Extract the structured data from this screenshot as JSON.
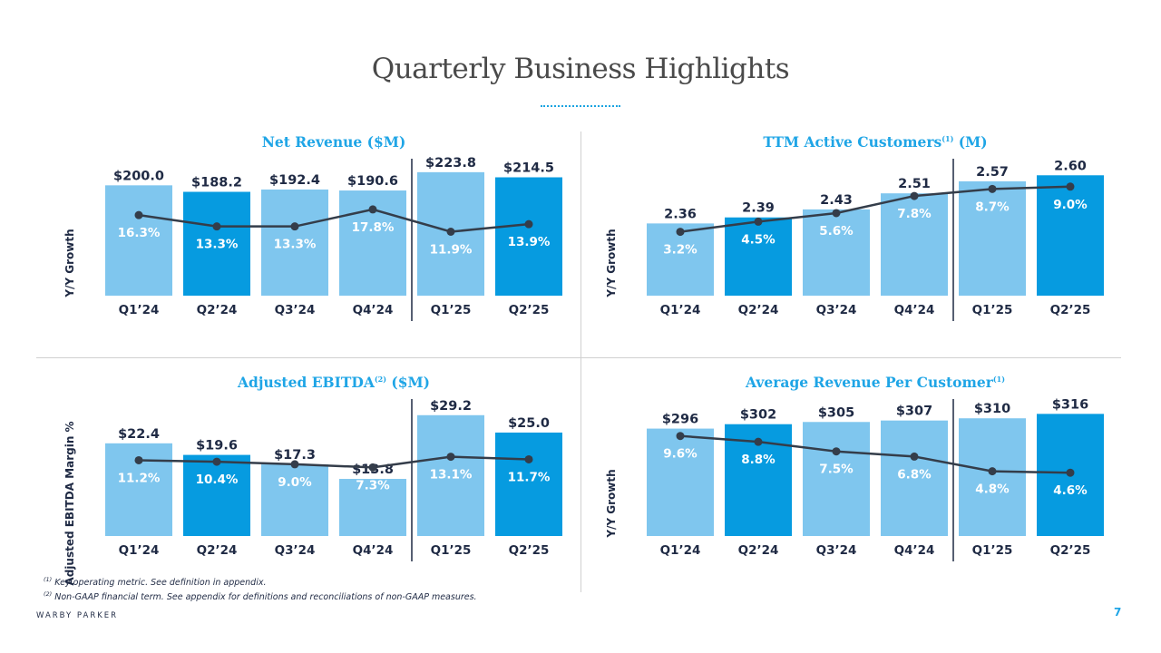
{
  "page": {
    "title": "Quarterly Business Highlights",
    "footnotes": [
      {
        "mark": "(1)",
        "text": "Key operating metric. See definition in appendix."
      },
      {
        "mark": "(2)",
        "text": "Non-GAAP financial term. See appendix for definitions and reconciliations of non-GAAP measures."
      }
    ],
    "brand": "WARBY PARKER",
    "page_number": "7"
  },
  "colors": {
    "bar_light": "#7fc6ee",
    "bar_dark": "#069be0",
    "line": "#343d4a",
    "title_accent": "#1fa5e6"
  },
  "chart_data": [
    {
      "type": "bar",
      "title": "Net Revenue ($M)",
      "title_parts": {
        "main": "Net Revenue ($M)",
        "sup": "",
        "suffix": ""
      },
      "ylabel": "Y/Y Growth",
      "categories": [
        "Q1’24",
        "Q2’24",
        "Q3’24",
        "Q4’24",
        "Q1’25",
        "Q2’25"
      ],
      "values": [
        200.0,
        188.2,
        192.4,
        190.6,
        223.8,
        214.5
      ],
      "value_labels": [
        "$200.0",
        "$188.2",
        "$192.4",
        "$190.6",
        "$223.8",
        "$214.5"
      ],
      "ylim": [
        0,
        240
      ],
      "line_series": {
        "name": "Y/Y Growth",
        "values": [
          16.3,
          13.3,
          13.3,
          17.8,
          11.9,
          13.9
        ],
        "labels": [
          "16.3%",
          "13.3%",
          "13.3%",
          "17.8%",
          "11.9%",
          "13.9%"
        ],
        "ylim": [
          -5,
          30
        ]
      },
      "highlight": [
        false,
        true,
        false,
        false,
        false,
        true
      ],
      "separator_after_index": 3
    },
    {
      "type": "bar",
      "title": "TTM Active Customers(1) (M)",
      "title_parts": {
        "main": "TTM Active Customers",
        "sup": "(1)",
        "suffix": " (M)"
      },
      "ylabel": "Y/Y Growth",
      "categories": [
        "Q1’24",
        "Q2’24",
        "Q3’24",
        "Q4’24",
        "Q1’25",
        "Q2’25"
      ],
      "values": [
        2.36,
        2.39,
        2.43,
        2.51,
        2.57,
        2.6
      ],
      "value_labels": [
        "2.36",
        "2.39",
        "2.43",
        "2.51",
        "2.57",
        "2.60"
      ],
      "ylim": [
        2.0,
        2.66
      ],
      "line_series": {
        "name": "Y/Y Growth",
        "values": [
          3.2,
          4.5,
          5.6,
          7.8,
          8.7,
          9.0
        ],
        "labels": [
          "3.2%",
          "4.5%",
          "5.6%",
          "7.8%",
          "8.7%",
          "9.0%"
        ],
        "ylim": [
          -5,
          12
        ]
      },
      "highlight": [
        false,
        true,
        false,
        false,
        false,
        true
      ],
      "separator_after_index": 3
    },
    {
      "type": "bar",
      "title": "Adjusted EBITDA(2) ($M)",
      "title_parts": {
        "main": "Adjusted EBITDA",
        "sup": "(2)",
        "suffix": " ($M)"
      },
      "ylabel": "Adjusted EBITDA Margin %",
      "categories": [
        "Q1’24",
        "Q2’24",
        "Q3’24",
        "Q4’24",
        "Q1’25",
        "Q2’25"
      ],
      "values": [
        22.4,
        19.6,
        17.3,
        13.8,
        29.2,
        25.0
      ],
      "value_labels": [
        "$22.4",
        "$19.6",
        "$17.3",
        "$13.8",
        "$29.2",
        "$25.0"
      ],
      "ylim": [
        0,
        32
      ],
      "line_series": {
        "name": "Adjusted EBITDA Margin %",
        "values": [
          11.2,
          10.4,
          9.0,
          7.3,
          13.1,
          11.7
        ],
        "labels": [
          "11.2%",
          "10.4%",
          "9.0%",
          "7.3%",
          "13.1%",
          "11.7%"
        ],
        "ylim": [
          -30,
          42
        ]
      },
      "highlight": [
        false,
        true,
        false,
        false,
        false,
        true
      ],
      "separator_after_index": 3
    },
    {
      "type": "bar",
      "title": "Average Revenue Per Customer(1)",
      "title_parts": {
        "main": "Average Revenue Per Customer",
        "sup": "(1)",
        "suffix": ""
      },
      "ylabel": "Y/Y Growth",
      "categories": [
        "Q1’24",
        "Q2’24",
        "Q3’24",
        "Q4’24",
        "Q1’25",
        "Q2’25"
      ],
      "values": [
        296,
        302,
        305,
        307,
        310,
        316
      ],
      "value_labels": [
        "$296",
        "$302",
        "$305",
        "$307",
        "$310",
        "$316"
      ],
      "ylim": [
        150,
        330
      ],
      "line_series": {
        "name": "Y/Y Growth",
        "values": [
          9.6,
          8.8,
          7.5,
          6.8,
          4.8,
          4.6
        ],
        "labels": [
          "9.6%",
          "8.8%",
          "7.5%",
          "6.8%",
          "4.8%",
          "4.6%"
        ],
        "ylim": [
          -4,
          14
        ]
      },
      "highlight": [
        false,
        true,
        false,
        false,
        false,
        true
      ],
      "separator_after_index": 3
    }
  ]
}
